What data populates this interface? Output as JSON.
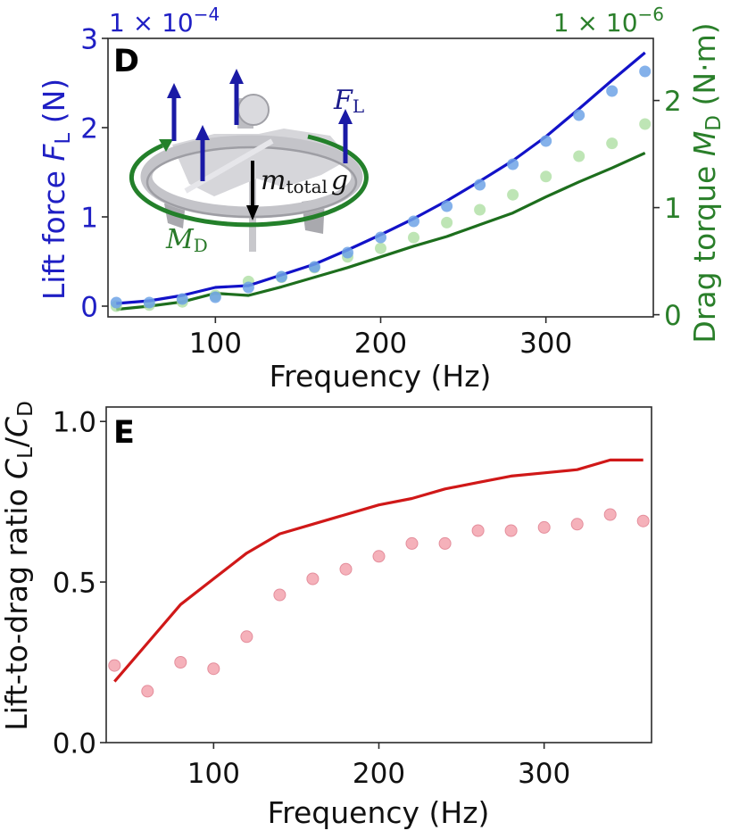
{
  "chart_data": [
    {
      "type": "line",
      "panel_label": "D",
      "x": [
        40,
        60,
        80,
        100,
        120,
        140,
        160,
        180,
        200,
        220,
        240,
        260,
        280,
        300,
        320,
        340,
        360
      ],
      "xlabel": "Frequency (Hz)",
      "xlim": [
        35,
        365
      ],
      "xticks": [
        {
          "value": 100,
          "label": "100"
        },
        {
          "value": 200,
          "label": "200"
        },
        {
          "value": 300,
          "label": "300"
        }
      ],
      "grid": false,
      "y_left": {
        "label": {
          "text": "Lift force ",
          "symbol": "F",
          "subscript": "L",
          "unit": " (N)"
        },
        "offset_text": {
          "base": "1 × 10",
          "exponent": "−4"
        },
        "lim": [
          -0.12,
          3.0
        ],
        "ticks": [
          {
            "value": 0,
            "label": "0"
          },
          {
            "value": 1,
            "label": "1"
          },
          {
            "value": 2,
            "label": "2"
          },
          {
            "value": 3,
            "label": "3"
          }
        ],
        "color": "#1f1fc4",
        "series": {
          "model_line": {
            "color": "#1212c8",
            "values": [
              0.03,
              0.06,
              0.12,
              0.21,
              0.23,
              0.35,
              0.47,
              0.63,
              0.8,
              0.98,
              1.18,
              1.4,
              1.63,
              1.9,
              2.21,
              2.53,
              2.84
            ]
          },
          "measured_points": {
            "color": "#6fa3e6",
            "values": [
              0.04,
              0.04,
              0.08,
              0.1,
              0.21,
              0.33,
              0.44,
              0.6,
              0.77,
              0.95,
              1.12,
              1.36,
              1.59,
              1.85,
              2.14,
              2.41,
              2.63
            ]
          }
        }
      },
      "y_right": {
        "label": {
          "text": "Drag torque ",
          "symbol": "M",
          "subscript": "D",
          "unit": " (N·m)"
        },
        "offset_text": {
          "base": "1 × 10",
          "exponent": "−6"
        },
        "lim": [
          -0.02,
          2.58
        ],
        "ticks": [
          {
            "value": 0,
            "label": "0"
          },
          {
            "value": 1,
            "label": "1"
          },
          {
            "value": 2,
            "label": "2"
          }
        ],
        "color": "#2a7f2a",
        "series": {
          "model_line": {
            "color": "#1d6e1d",
            "values": [
              0.05,
              0.08,
              0.12,
              0.2,
              0.18,
              0.26,
              0.35,
              0.44,
              0.54,
              0.64,
              0.73,
              0.84,
              0.95,
              1.1,
              1.24,
              1.37,
              1.51
            ]
          },
          "measured_points": {
            "color": "#a8dc9c",
            "values": [
              0.08,
              0.09,
              0.12,
              0.18,
              0.31,
              0.35,
              0.44,
              0.54,
              0.62,
              0.72,
              0.86,
              0.98,
              1.12,
              1.29,
              1.48,
              1.6,
              1.78
            ]
          }
        }
      },
      "annotations": {
        "lift": {
          "symbol": "F",
          "subscript": "L",
          "color": "#1a1a8a",
          "arrow_color": "#1a1aa6"
        },
        "weight": {
          "symbol": "m",
          "subscript": "total",
          "gravity": "g",
          "color": "#111111"
        },
        "torque": {
          "symbol": "M",
          "subscript": "D",
          "color": "#2a7a2a",
          "ring_color": "#23802a"
        }
      }
    },
    {
      "type": "line",
      "panel_label": "E",
      "x": [
        40,
        60,
        80,
        100,
        120,
        140,
        160,
        180,
        200,
        220,
        240,
        260,
        280,
        300,
        320,
        340,
        360
      ],
      "xlabel": "Frequency (Hz)",
      "xlim": [
        35,
        365
      ],
      "xticks": [
        {
          "value": 100,
          "label": "100"
        },
        {
          "value": 200,
          "label": "200"
        },
        {
          "value": 300,
          "label": "300"
        }
      ],
      "grid": false,
      "ylabel": {
        "text": "Lift-to-drag ratio ",
        "symbol1": "C",
        "sub1": "L",
        "slash": "/",
        "symbol2": "C",
        "sub2": "D"
      },
      "ylim": [
        0,
        1.045
      ],
      "yticks": [
        {
          "value": 0.0,
          "label": "0.0"
        },
        {
          "value": 0.5,
          "label": "0.5"
        },
        {
          "value": 1.0,
          "label": "1.0"
        }
      ],
      "series": {
        "model_line": {
          "color": "#d01818",
          "values": [
            0.19,
            0.31,
            0.43,
            0.51,
            0.59,
            0.65,
            0.68,
            0.71,
            0.74,
            0.76,
            0.79,
            0.81,
            0.83,
            0.84,
            0.85,
            0.88,
            0.88
          ]
        },
        "measured_points": {
          "color": "#f4a9b3",
          "values": [
            0.24,
            0.16,
            0.25,
            0.23,
            0.33,
            0.46,
            0.51,
            0.54,
            0.58,
            0.62,
            0.62,
            0.66,
            0.66,
            0.67,
            0.68,
            0.71,
            0.69
          ]
        }
      }
    }
  ]
}
